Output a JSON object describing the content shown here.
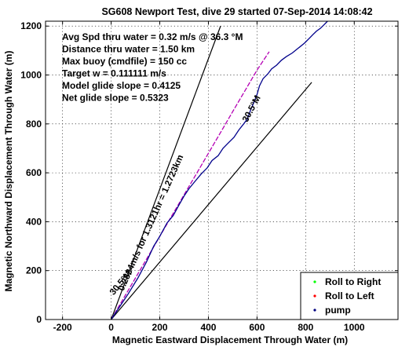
{
  "chart_data": {
    "type": "line",
    "title": "SG608 Newport Test, dive 29 started 07-Sep-2014 14:08:42",
    "xlabel": "Magnetic Eastward Displacement Through Water (m)",
    "ylabel": "Magnetic Northward Displacement Through Water (m)",
    "xlim": [
      -270,
      1180
    ],
    "ylim": [
      0,
      1220
    ],
    "xticks": [
      -200,
      0,
      200,
      400,
      600,
      800,
      1000
    ],
    "yticks": [
      0,
      200,
      400,
      600,
      800,
      1000,
      1200
    ],
    "grid": true,
    "legend_position": "bottom-right",
    "stats": [
      "Avg Spd thru water  =  0.32 m/s @  36.3 °M",
      "Distance thru water =  1.50 km",
      "Max buoy (cmdfile) = 150 cc",
      "Target w            = 0.111111 m/s",
      "Model glide slope   = 0.4125",
      "Net glide slope        = 0.5323"
    ],
    "annotations": {
      "track_label": "0.2834m/s for 1.3121hr = 1.2723km",
      "heading_label_lower": "30.5°M",
      "heading_label_upper": "30.5°M"
    },
    "reference_lines": [
      {
        "x": [
          0,
          450
        ],
        "y": [
          0,
          1200
        ]
      },
      {
        "x": [
          0,
          825
        ],
        "y": [
          0,
          970
        ]
      }
    ],
    "series": [
      {
        "name": "pump",
        "color": "#00008b",
        "x": [
          0,
          30,
          70,
          110,
          145,
          175,
          200,
          230,
          255,
          280,
          300,
          320,
          345,
          370,
          395,
          415,
          440,
          460,
          480,
          505,
          525,
          545,
          560,
          575,
          590,
          600,
          610,
          625,
          645,
          660,
          680,
          700,
          720,
          745,
          770,
          795,
          815,
          830,
          845,
          860,
          875,
          890
        ],
        "y": [
          0,
          45,
          105,
          170,
          235,
          300,
          340,
          395,
          425,
          470,
          505,
          535,
          565,
          595,
          620,
          650,
          670,
          700,
          720,
          745,
          775,
          800,
          820,
          860,
          895,
          920,
          955,
          985,
          1005,
          1025,
          1040,
          1060,
          1075,
          1090,
          1110,
          1130,
          1150,
          1165,
          1180,
          1190,
          1205,
          1220
        ]
      },
      {
        "name": "",
        "color": "#b400b4",
        "x": [
          0,
          50,
          100,
          150,
          200,
          250,
          300,
          350,
          400,
          450,
          500,
          550,
          600,
          650
        ],
        "y": [
          0,
          85,
          170,
          255,
          340,
          425,
          510,
          595,
          680,
          765,
          850,
          935,
          1020,
          1095
        ]
      }
    ],
    "legend": [
      {
        "label": "Roll to Right",
        "color": "#00ff00"
      },
      {
        "label": "Roll to Left",
        "color": "#ff0000"
      },
      {
        "label": "pump",
        "color": "#000080"
      }
    ]
  }
}
